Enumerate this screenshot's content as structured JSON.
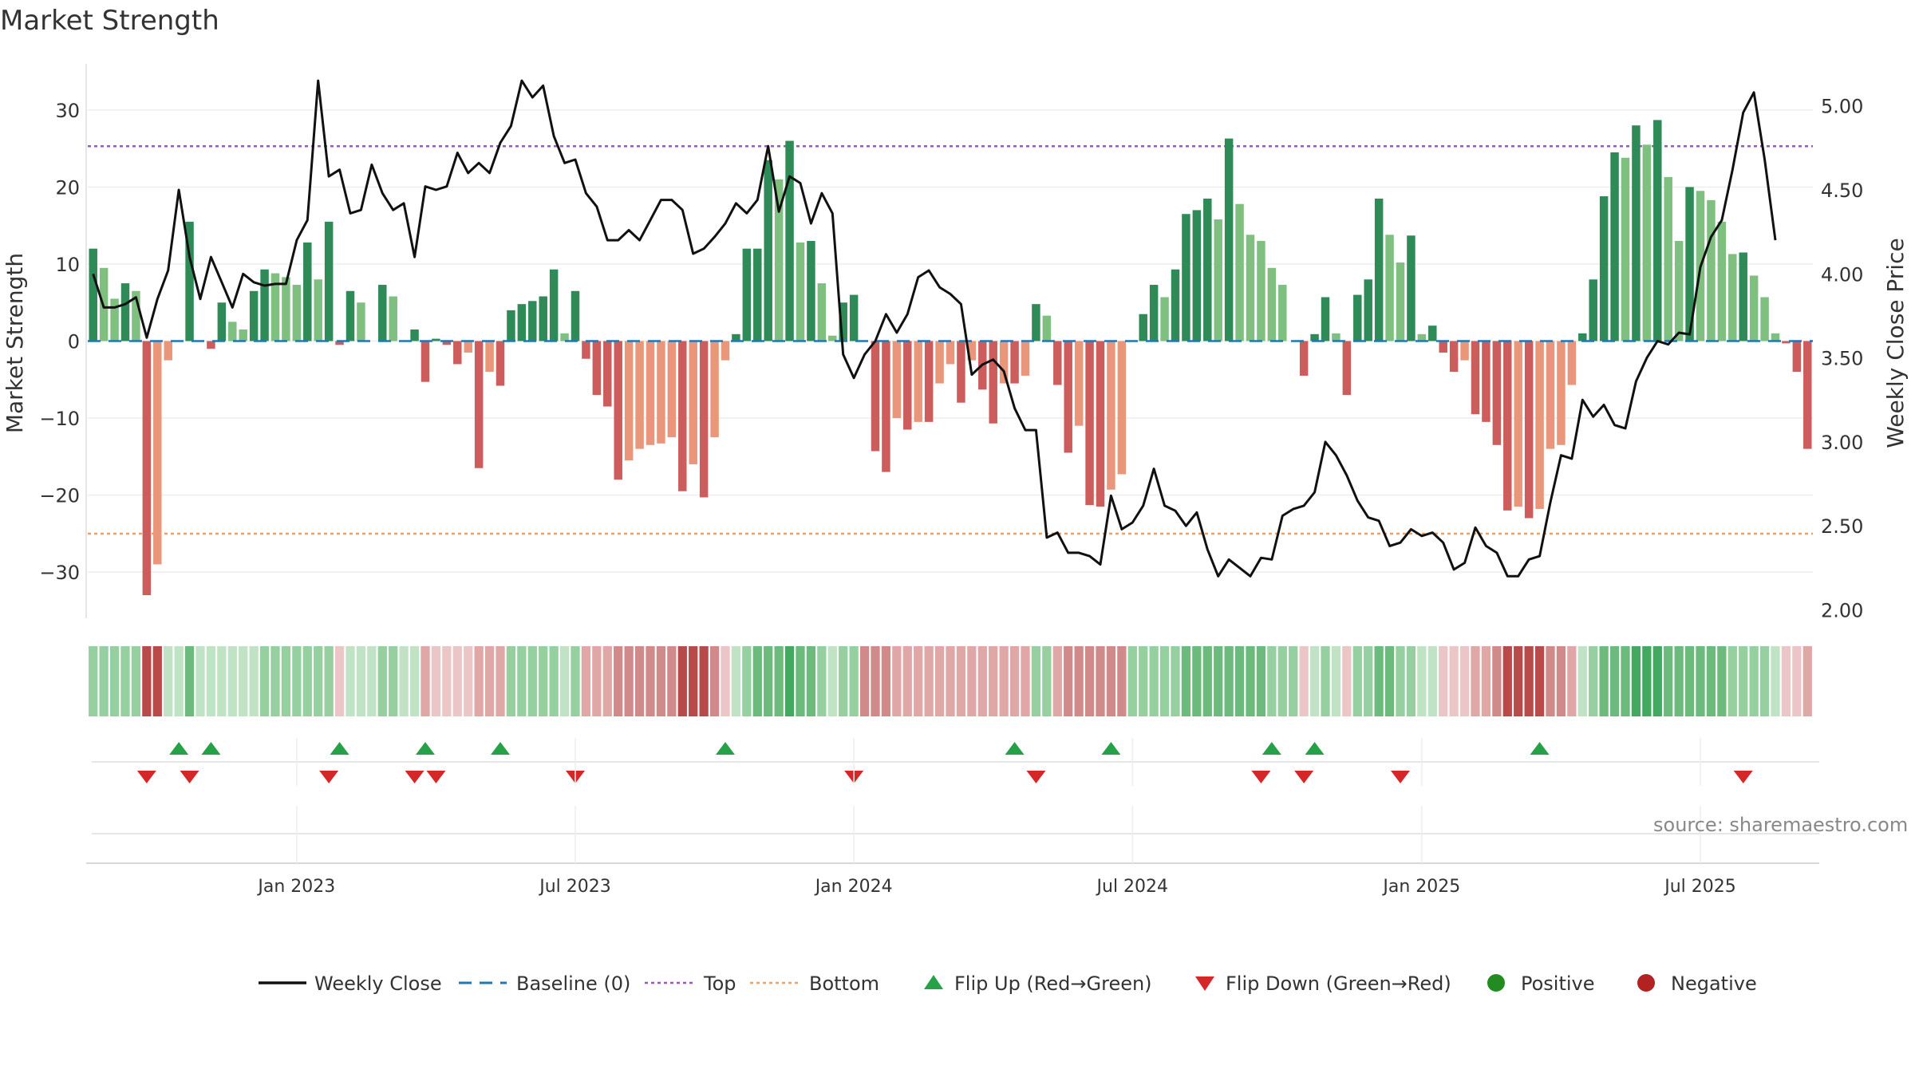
{
  "title": "Market Strength",
  "source_note": "source: sharemaestro.com",
  "colors": {
    "pos_strong": "#2e8b57",
    "pos_weak": "#7fbf7f",
    "neg_strong": "#cd5c5c",
    "neg_weak": "#e9967a",
    "top_line": "#9b59b6",
    "bottom_line": "#f0a060",
    "baseline": "#1f77b4",
    "price_line": "#111111",
    "flip_up": "#27a147",
    "flip_down": "#d62728",
    "legend_pos": "#228b22",
    "legend_neg": "#b22222"
  },
  "chart_data": {
    "type": "bar",
    "title": "Market Strength",
    "xlabel": "",
    "ylabel": "Market Strength",
    "ylabel_right": "Weekly Close Price",
    "ylim": [
      -36,
      36
    ],
    "ylim_right": [
      1.95,
      5.25
    ],
    "yticks": [
      30,
      20,
      10,
      0,
      -10,
      -20,
      -30
    ],
    "ytick_labels": [
      "30",
      "20",
      "10",
      "0",
      "−10",
      "−20",
      "−30"
    ],
    "yticks_right": [
      5.0,
      4.5,
      4.0,
      3.5,
      3.0,
      2.5,
      2.0
    ],
    "ytick_labels_right": [
      "5.00",
      "4.50",
      "4.00",
      "3.50",
      "3.00",
      "2.50",
      "2.00"
    ],
    "xticks": [
      {
        "week": 19,
        "label": "Jan 2023"
      },
      {
        "week": 45,
        "label": "Jul 2023"
      },
      {
        "week": 71,
        "label": "Jan 2024"
      },
      {
        "week": 97,
        "label": "Jul 2024"
      },
      {
        "week": 124,
        "label": "Jan 2025"
      },
      {
        "week": 150,
        "label": "Jul 2025"
      }
    ],
    "top_threshold": 25.3,
    "bottom_threshold": -25.0,
    "strength": [
      12.0,
      9.5,
      5.5,
      7.5,
      6.5,
      -33.0,
      -29.0,
      -2.5,
      0,
      15.5,
      0,
      -1.0,
      5.0,
      2.5,
      1.5,
      6.5,
      9.3,
      8.8,
      8.3,
      7.3,
      12.8,
      8.0,
      15.5,
      -0.5,
      6.5,
      5.0,
      0,
      7.3,
      5.8,
      0,
      1.5,
      -5.3,
      0.3,
      -0.5,
      -3.0,
      -1.5,
      -16.5,
      -4.0,
      -5.8,
      4.0,
      4.8,
      5.2,
      5.8,
      9.3,
      1.0,
      6.5,
      -2.3,
      -7.0,
      -8.5,
      -18.0,
      -15.5,
      -14.0,
      -13.5,
      -13.3,
      -12.5,
      -19.5,
      -16.0,
      -20.3,
      -12.5,
      -2.5,
      0.9,
      12.0,
      12.0,
      23.5,
      21.0,
      26.0,
      12.8,
      13.0,
      7.5,
      0.7,
      5.0,
      6.0,
      0,
      -14.3,
      -17.0,
      -10.0,
      -11.5,
      -10.5,
      -10.5,
      -5.5,
      -3.0,
      -8.0,
      -2.5,
      -6.3,
      -10.7,
      -5.5,
      -5.5,
      -4.5,
      4.8,
      3.3,
      -5.7,
      -14.5,
      -11.0,
      -21.3,
      -21.5,
      -19.3,
      -17.3,
      0,
      3.5,
      7.3,
      5.7,
      9.3,
      16.5,
      17.0,
      18.5,
      15.8,
      26.3,
      17.8,
      13.8,
      13.0,
      9.5,
      7.3,
      0,
      -4.5,
      0.9,
      5.7,
      1.0,
      -7.0,
      6.0,
      8.0,
      18.5,
      13.8,
      10.2,
      13.7,
      0.9,
      2.0,
      -1.5,
      -4.0,
      -2.5,
      -9.5,
      -10.5,
      -13.5,
      -22.0,
      -21.5,
      -23.0,
      -21.8,
      -14.0,
      -13.5,
      -5.7,
      1.0,
      8.0,
      18.8,
      24.5,
      23.8,
      28.0,
      25.5,
      28.7,
      21.3,
      13.0,
      20.0,
      19.5,
      18.3,
      15.5,
      11.3,
      11.5,
      8.5,
      5.7,
      1.0,
      -0.3,
      -4.0,
      -14.0
    ],
    "weekly_close": [
      4.0,
      3.8,
      3.8,
      3.82,
      3.86,
      3.62,
      3.85,
      4.02,
      4.5,
      4.1,
      3.85,
      4.1,
      3.95,
      3.8,
      4.0,
      3.95,
      3.93,
      3.94,
      3.94,
      4.2,
      4.32,
      5.15,
      4.58,
      4.62,
      4.36,
      4.38,
      4.65,
      4.48,
      4.38,
      4.42,
      4.1,
      4.52,
      4.5,
      4.52,
      4.72,
      4.6,
      4.66,
      4.6,
      4.78,
      4.88,
      5.15,
      5.05,
      5.12,
      4.82,
      4.66,
      4.68,
      4.48,
      4.4,
      4.2,
      4.2,
      4.26,
      4.2,
      4.32,
      4.44,
      4.44,
      4.38,
      4.12,
      4.15,
      4.22,
      4.3,
      4.42,
      4.36,
      4.44,
      4.76,
      4.37,
      4.58,
      4.54,
      4.3,
      4.48,
      4.36,
      3.52,
      3.38,
      3.52,
      3.6,
      3.76,
      3.65,
      3.76,
      3.98,
      4.02,
      3.92,
      3.88,
      3.82,
      3.4,
      3.46,
      3.49,
      3.42,
      3.2,
      3.07,
      3.07,
      2.43,
      2.46,
      2.34,
      2.34,
      2.32,
      2.27,
      2.68,
      2.48,
      2.52,
      2.62,
      2.84,
      2.62,
      2.59,
      2.5,
      2.58,
      2.36,
      2.2,
      2.3,
      2.25,
      2.2,
      2.31,
      2.3,
      2.56,
      2.6,
      2.62,
      2.7,
      3.0,
      2.92,
      2.8,
      2.65,
      2.55,
      2.53,
      2.38,
      2.4,
      2.48,
      2.44,
      2.46,
      2.4,
      2.24,
      2.28,
      2.49,
      2.38,
      2.34,
      2.2,
      2.2,
      2.3,
      2.32,
      2.64,
      2.92,
      2.9,
      3.25,
      3.15,
      3.22,
      3.1,
      3.08,
      3.36,
      3.5,
      3.6,
      3.58,
      3.65,
      3.64,
      4.04,
      4.22,
      4.32,
      4.62,
      4.96,
      5.08,
      4.68,
      4.2
    ],
    "bottom_band_level": [
      2,
      2,
      2,
      2,
      2,
      -4,
      -4,
      1,
      1,
      3,
      1,
      1,
      1,
      1,
      1,
      1,
      2,
      2,
      2,
      2,
      2,
      2,
      2,
      -1,
      1,
      1,
      1,
      2,
      2,
      1,
      1,
      -2,
      -1,
      -1,
      -1,
      -1,
      -2,
      -2,
      -2,
      2,
      2,
      2,
      2,
      2,
      1,
      2,
      -2,
      -2,
      -2,
      -3,
      -3,
      -3,
      -3,
      -3,
      -3,
      -4,
      -4,
      -4,
      -3,
      -1,
      1,
      2,
      3,
      3,
      3,
      4,
      3,
      3,
      2,
      1,
      2,
      2,
      -3,
      -3,
      -3,
      -2,
      -2,
      -2,
      -2,
      -2,
      -2,
      -2,
      -2,
      -2,
      -2,
      -2,
      -2,
      -2,
      2,
      2,
      -2,
      -3,
      -3,
      -3,
      -3,
      -3,
      -3,
      2,
      2,
      2,
      2,
      2,
      3,
      3,
      3,
      3,
      3,
      3,
      3,
      3,
      2,
      2,
      2,
      -1,
      1,
      2,
      1,
      -1,
      2,
      2,
      3,
      3,
      2,
      2,
      1,
      1,
      -1,
      -1,
      -1,
      -2,
      -2,
      -3,
      -4,
      -4,
      -4,
      -4,
      -3,
      -3,
      -2,
      1,
      2,
      3,
      3,
      3,
      4,
      4,
      4,
      3,
      3,
      3,
      3,
      3,
      3,
      2,
      2,
      2,
      2,
      1,
      -1,
      -1,
      -2
    ],
    "flip_up_weeks": [
      8,
      11,
      23,
      31,
      38,
      59,
      86,
      95,
      110,
      114,
      135
    ],
    "flip_down_weeks": [
      5,
      9,
      22,
      30,
      32,
      45,
      71,
      88,
      109,
      113,
      122,
      154
    ],
    "legend": [
      "Weekly Close",
      "Baseline (0)",
      "Top",
      "Bottom",
      "Flip Up (Red→Green)",
      "Flip Down (Green→Red)",
      "Positive",
      "Negative"
    ]
  }
}
